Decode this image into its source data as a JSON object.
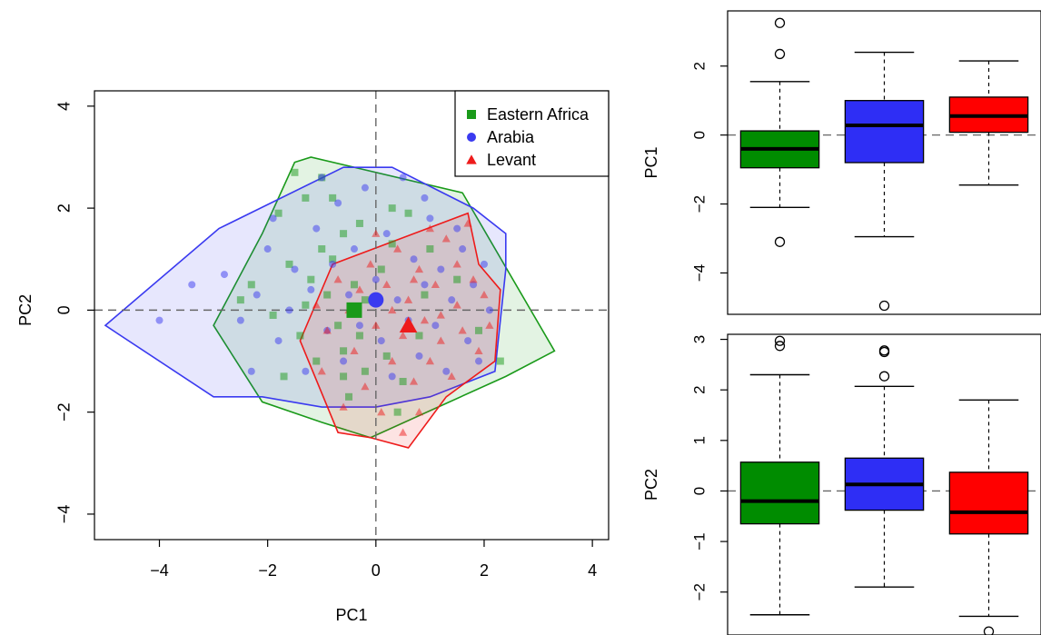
{
  "chart_data": [
    {
      "type": "scatter",
      "xlabel": "PC1",
      "ylabel": "PC2",
      "xlim": [
        -5.2,
        4.3
      ],
      "ylim": [
        -4.5,
        4.3
      ],
      "xticks": [
        "−4",
        "−2",
        "0",
        "2",
        "4"
      ],
      "yticks": [
        "−4",
        "−2",
        "0",
        "2",
        "4"
      ],
      "xtick_values": [
        -4,
        -2,
        0,
        2,
        4
      ],
      "ytick_values": [
        -4,
        -2,
        0,
        2,
        4
      ],
      "reference_lines": {
        "x": 0,
        "y": 0,
        "style": "dashed"
      },
      "legend": {
        "position": "top-right",
        "entries": [
          "Eastern Africa",
          "Arabia",
          "Levant"
        ]
      },
      "series": [
        {
          "name": "Eastern Africa",
          "color": "#1a9a1a",
          "marker": "square",
          "centroid": [
            -0.4,
            0.0
          ],
          "hull": [
            [
              -1.5,
              2.9
            ],
            [
              -1.2,
              3.0
            ],
            [
              1.6,
              2.3
            ],
            [
              3.3,
              -0.8
            ],
            [
              2.4,
              -1.3
            ],
            [
              -0.1,
              -2.5
            ],
            [
              -1.0,
              -2.2
            ],
            [
              -2.1,
              -1.8
            ],
            [
              -3.0,
              -0.3
            ],
            [
              -2.1,
              1.5
            ]
          ],
          "points": [
            [
              -1.8,
              1.9
            ],
            [
              -1.3,
              2.2
            ],
            [
              -1.0,
              2.6
            ],
            [
              -0.8,
              2.2
            ],
            [
              -0.6,
              1.5
            ],
            [
              -0.3,
              1.7
            ],
            [
              0.3,
              2.0
            ],
            [
              0.6,
              1.9
            ],
            [
              -1.6,
              0.9
            ],
            [
              -1.2,
              0.6
            ],
            [
              -0.9,
              0.3
            ],
            [
              -0.7,
              -0.3
            ],
            [
              -1.4,
              -0.5
            ],
            [
              -1.1,
              -1.0
            ],
            [
              -0.6,
              -0.8
            ],
            [
              -0.3,
              -0.5
            ],
            [
              0.2,
              -0.9
            ],
            [
              0.5,
              -1.4
            ],
            [
              -0.5,
              -1.7
            ],
            [
              0.4,
              -2.0
            ],
            [
              -1.9,
              -0.1
            ],
            [
              -2.3,
              0.5
            ],
            [
              -1.7,
              -1.3
            ],
            [
              -1.0,
              1.2
            ],
            [
              -0.4,
              0.5
            ],
            [
              0.1,
              0.8
            ],
            [
              1.0,
              1.2
            ],
            [
              1.5,
              0.6
            ],
            [
              1.9,
              -0.4
            ],
            [
              2.3,
              -1.0
            ],
            [
              0.8,
              -0.5
            ],
            [
              -0.2,
              -1.2
            ],
            [
              -1.3,
              0.1
            ],
            [
              -0.8,
              1.0
            ],
            [
              0.3,
              1.3
            ],
            [
              -1.5,
              2.7
            ],
            [
              -2.5,
              0.2
            ],
            [
              -0.6,
              -1.3
            ],
            [
              0.9,
              0.3
            ],
            [
              -0.2,
              0.2
            ]
          ]
        },
        {
          "name": "Arabia",
          "color": "#3a3af0",
          "marker": "circle",
          "centroid": [
            0.0,
            0.2
          ],
          "hull": [
            [
              -5.0,
              -0.3
            ],
            [
              -2.9,
              1.6
            ],
            [
              -0.6,
              2.8
            ],
            [
              0.3,
              2.8
            ],
            [
              1.8,
              2.0
            ],
            [
              2.4,
              1.5
            ],
            [
              2.4,
              0.8
            ],
            [
              2.3,
              -0.2
            ],
            [
              2.2,
              -1.2
            ],
            [
              1.0,
              -1.7
            ],
            [
              0.0,
              -1.9
            ],
            [
              -1.0,
              -1.9
            ],
            [
              -2.1,
              -1.7
            ],
            [
              -3.0,
              -1.7
            ]
          ],
          "points": [
            [
              -2.8,
              0.7
            ],
            [
              -2.5,
              -0.2
            ],
            [
              -2.2,
              0.3
            ],
            [
              -2.0,
              1.2
            ],
            [
              -1.8,
              -0.6
            ],
            [
              -1.6,
              0.0
            ],
            [
              -1.5,
              0.8
            ],
            [
              -1.3,
              -1.2
            ],
            [
              -1.2,
              0.4
            ],
            [
              -1.1,
              1.6
            ],
            [
              -0.9,
              -0.4
            ],
            [
              -0.8,
              0.9
            ],
            [
              -0.7,
              2.1
            ],
            [
              -0.6,
              -1.0
            ],
            [
              -0.5,
              0.3
            ],
            [
              -0.4,
              1.2
            ],
            [
              -0.3,
              -0.3
            ],
            [
              -0.2,
              2.4
            ],
            [
              0.0,
              0.6
            ],
            [
              0.1,
              -0.6
            ],
            [
              0.2,
              1.5
            ],
            [
              0.3,
              -1.3
            ],
            [
              0.4,
              0.2
            ],
            [
              0.5,
              2.6
            ],
            [
              0.6,
              -0.2
            ],
            [
              0.7,
              1.0
            ],
            [
              0.8,
              -0.9
            ],
            [
              0.9,
              0.5
            ],
            [
              1.0,
              1.8
            ],
            [
              1.1,
              -0.3
            ],
            [
              1.2,
              0.8
            ],
            [
              1.3,
              -1.2
            ],
            [
              1.4,
              0.2
            ],
            [
              1.6,
              1.2
            ],
            [
              1.7,
              -0.6
            ],
            [
              1.8,
              0.5
            ],
            [
              1.9,
              -1.0
            ],
            [
              2.0,
              0.9
            ],
            [
              2.1,
              0.0
            ],
            [
              -2.3,
              -1.2
            ],
            [
              -1.9,
              1.8
            ],
            [
              -1.0,
              2.6
            ],
            [
              0.9,
              2.2
            ],
            [
              -3.4,
              0.5
            ],
            [
              -4.0,
              -0.2
            ],
            [
              1.5,
              1.6
            ]
          ]
        },
        {
          "name": "Levant",
          "color": "#ee1b1b",
          "marker": "triangle",
          "centroid": [
            0.6,
            -0.3
          ],
          "hull": [
            [
              -0.8,
              0.9
            ],
            [
              1.7,
              1.9
            ],
            [
              1.9,
              0.9
            ],
            [
              2.3,
              0.4
            ],
            [
              2.2,
              -1.0
            ],
            [
              1.3,
              -1.7
            ],
            [
              0.6,
              -2.7
            ],
            [
              -0.1,
              -2.5
            ],
            [
              -0.7,
              -2.4
            ],
            [
              -1.4,
              -0.6
            ]
          ],
          "points": [
            [
              -0.7,
              0.6
            ],
            [
              -0.5,
              0.0
            ],
            [
              -0.4,
              -0.8
            ],
            [
              -0.3,
              0.4
            ],
            [
              -0.2,
              -1.5
            ],
            [
              -0.1,
              0.9
            ],
            [
              0.0,
              -0.3
            ],
            [
              0.1,
              -2.0
            ],
            [
              0.2,
              0.5
            ],
            [
              0.3,
              -1.0
            ],
            [
              0.4,
              1.2
            ],
            [
              0.5,
              -0.5
            ],
            [
              0.6,
              0.2
            ],
            [
              0.7,
              -1.4
            ],
            [
              0.8,
              0.8
            ],
            [
              0.9,
              -0.2
            ],
            [
              1.0,
              -1.0
            ],
            [
              1.1,
              0.5
            ],
            [
              1.2,
              -0.6
            ],
            [
              1.3,
              1.4
            ],
            [
              1.4,
              -1.3
            ],
            [
              1.5,
              0.1
            ],
            [
              1.6,
              -0.4
            ],
            [
              1.7,
              1.7
            ],
            [
              1.8,
              0.6
            ],
            [
              1.9,
              -0.8
            ],
            [
              2.0,
              0.3
            ],
            [
              -0.9,
              -0.4
            ],
            [
              -1.0,
              -1.2
            ],
            [
              -1.1,
              0.1
            ],
            [
              0.5,
              -2.4
            ],
            [
              1.0,
              1.6
            ],
            [
              0.3,
              0.0
            ],
            [
              0.8,
              -2.0
            ],
            [
              1.5,
              0.9
            ],
            [
              2.1,
              -0.3
            ],
            [
              -0.6,
              -1.9
            ],
            [
              0.0,
              1.5
            ],
            [
              1.2,
              -0.1
            ],
            [
              0.7,
              0.6
            ]
          ]
        }
      ]
    },
    {
      "type": "box",
      "ylabel": "PC1",
      "ylim": [
        -5.2,
        3.6
      ],
      "yticks": [
        "−4",
        "−2",
        "0",
        "2"
      ],
      "ytick_values": [
        -4,
        -2,
        0,
        2
      ],
      "reference_lines": {
        "y": 0,
        "style": "dashed"
      },
      "groups": [
        {
          "name": "Eastern Africa",
          "color": "#008c00",
          "q1": -0.95,
          "median": -0.4,
          "q3": 0.12,
          "whisker_low": -2.1,
          "whisker_high": 1.55,
          "outliers": [
            3.25,
            2.35,
            -3.1
          ]
        },
        {
          "name": "Arabia",
          "color": "#2e2ef5",
          "q1": -0.8,
          "median": 0.28,
          "q3": 1.0,
          "whisker_low": -2.95,
          "whisker_high": 2.4,
          "outliers": [
            -4.95
          ]
        },
        {
          "name": "Levant",
          "color": "#ff0000",
          "q1": 0.08,
          "median": 0.55,
          "q3": 1.1,
          "whisker_low": -1.45,
          "whisker_high": 2.15,
          "outliers": []
        }
      ]
    },
    {
      "type": "box",
      "ylabel": "PC2",
      "ylim": [
        -2.85,
        3.1
      ],
      "yticks": [
        "−2",
        "−1",
        "0",
        "1",
        "2",
        "3"
      ],
      "ytick_values": [
        -2,
        -1,
        0,
        1,
        2,
        3
      ],
      "reference_lines": {
        "y": 0,
        "style": "dashed"
      },
      "groups": [
        {
          "name": "Eastern Africa",
          "color": "#008c00",
          "q1": -0.65,
          "median": -0.2,
          "q3": 0.57,
          "whisker_low": -2.45,
          "whisker_high": 2.3,
          "outliers": [
            2.97,
            2.87
          ]
        },
        {
          "name": "Arabia",
          "color": "#2e2ef5",
          "q1": -0.38,
          "median": 0.13,
          "q3": 0.65,
          "whisker_low": -1.9,
          "whisker_high": 2.07,
          "outliers": [
            2.78,
            2.75,
            2.27
          ]
        },
        {
          "name": "Levant",
          "color": "#ff0000",
          "q1": -0.85,
          "median": -0.42,
          "q3": 0.37,
          "whisker_low": -2.48,
          "whisker_high": 1.8,
          "outliers": [
            -2.78
          ]
        }
      ]
    }
  ]
}
